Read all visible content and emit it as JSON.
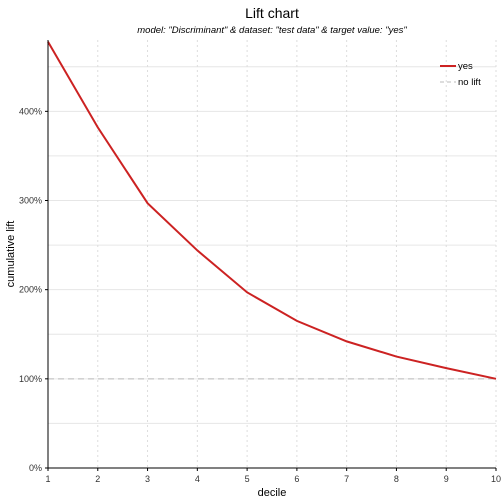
{
  "chart_data": {
    "type": "line",
    "title": "Lift chart",
    "subtitle": "model: \"Discriminant\"  &  dataset: \"test data\"  &  target value: \"yes\"",
    "xlabel": "decile",
    "ylabel": "cumulative lift",
    "x": [
      1,
      2,
      3,
      4,
      5,
      6,
      7,
      8,
      9,
      10
    ],
    "xlim": [
      1,
      10
    ],
    "ylim": [
      0,
      480
    ],
    "yticks": [
      0,
      100,
      200,
      300,
      400
    ],
    "ytick_labels": [
      "0%",
      "100%",
      "200%",
      "300%",
      "400%"
    ],
    "xtick_labels": [
      "1",
      "2",
      "3",
      "4",
      "5",
      "6",
      "7",
      "8",
      "9",
      "10"
    ],
    "series": [
      {
        "name": "yes",
        "color": "#cc2222",
        "values": [
          478,
          382,
          297,
          244,
          197,
          165,
          142,
          125,
          112,
          100
        ]
      },
      {
        "name": "no lift",
        "color": "#bbbbbb",
        "values": [
          100,
          100,
          100,
          100,
          100,
          100,
          100,
          100,
          100,
          100
        ]
      }
    ],
    "grid": true,
    "legend_position": "top-right"
  }
}
